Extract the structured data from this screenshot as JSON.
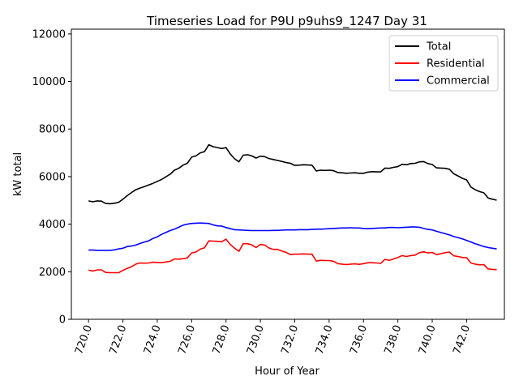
{
  "chart_data": {
    "type": "line",
    "title": "Timeseries Load for P9U p9uhs9_1247  Day 31",
    "xlabel": "Hour of Year",
    "ylabel": "kW total",
    "xlim": [
      719.0,
      744.2
    ],
    "ylim": [
      0,
      12200
    ],
    "xticks": [
      720,
      722,
      724,
      726,
      728,
      730,
      732,
      734,
      736,
      738,
      740,
      742
    ],
    "xtick_labels": [
      "720.0",
      "722.0",
      "724.0",
      "726.0",
      "728.0",
      "730.0",
      "732.0",
      "734.0",
      "736.0",
      "738.0",
      "740.0",
      "742.0"
    ],
    "yticks": [
      0,
      2000,
      4000,
      6000,
      8000,
      10000,
      12000
    ],
    "ytick_labels": [
      "0",
      "2000",
      "4000",
      "6000",
      "8000",
      "10000",
      "12000"
    ],
    "legend_position": "top-right",
    "x": [
      720.0,
      720.25,
      720.5,
      720.75,
      721.0,
      721.25,
      721.5,
      721.75,
      722.0,
      722.25,
      722.5,
      722.75,
      723.0,
      723.25,
      723.5,
      723.75,
      724.0,
      724.25,
      724.5,
      724.75,
      725.0,
      725.25,
      725.5,
      725.75,
      726.0,
      726.25,
      726.5,
      726.75,
      727.0,
      727.25,
      727.5,
      727.75,
      728.0,
      728.25,
      728.5,
      728.75,
      729.0,
      729.25,
      729.5,
      729.75,
      730.0,
      730.25,
      730.5,
      730.75,
      731.0,
      731.25,
      731.5,
      731.75,
      732.0,
      732.25,
      732.5,
      732.75,
      733.0,
      733.25,
      733.5,
      733.75,
      734.0,
      734.25,
      734.5,
      734.75,
      735.0,
      735.25,
      735.5,
      735.75,
      736.0,
      736.25,
      736.5,
      736.75,
      737.0,
      737.25,
      737.5,
      737.75,
      738.0,
      738.25,
      738.5,
      738.75,
      739.0,
      739.25,
      739.5,
      739.75,
      740.0,
      740.25,
      740.5,
      740.75,
      741.0,
      741.25,
      741.5,
      741.75,
      742.0,
      742.25,
      742.5,
      742.75,
      743.0,
      743.25,
      743.5,
      743.75
    ],
    "series": [
      {
        "name": "Total",
        "color": "#000000",
        "values": [
          4980,
          4940,
          4980,
          4970,
          4870,
          4860,
          4880,
          4920,
          5050,
          5200,
          5330,
          5450,
          5520,
          5580,
          5650,
          5720,
          5800,
          5880,
          5990,
          6100,
          6270,
          6350,
          6480,
          6560,
          6820,
          6870,
          7000,
          7050,
          7340,
          7260,
          7220,
          7180,
          7220,
          6950,
          6750,
          6620,
          6900,
          6920,
          6870,
          6780,
          6860,
          6840,
          6760,
          6720,
          6680,
          6640,
          6590,
          6560,
          6470,
          6480,
          6500,
          6490,
          6480,
          6240,
          6270,
          6260,
          6270,
          6250,
          6170,
          6160,
          6140,
          6150,
          6160,
          6140,
          6140,
          6190,
          6210,
          6200,
          6200,
          6360,
          6350,
          6390,
          6420,
          6520,
          6500,
          6550,
          6560,
          6620,
          6630,
          6550,
          6510,
          6370,
          6360,
          6350,
          6310,
          6120,
          6030,
          5930,
          5860,
          5560,
          5450,
          5370,
          5320,
          5100,
          5050,
          5010
        ]
      },
      {
        "name": "Residential",
        "color": "#ff0000",
        "values": [
          2070,
          2030,
          2080,
          2080,
          1970,
          1960,
          1960,
          1960,
          2060,
          2140,
          2210,
          2320,
          2370,
          2360,
          2370,
          2400,
          2390,
          2390,
          2410,
          2440,
          2540,
          2530,
          2550,
          2580,
          2790,
          2830,
          2950,
          3010,
          3300,
          3290,
          3280,
          3260,
          3370,
          3150,
          2990,
          2860,
          3180,
          3180,
          3130,
          3020,
          3150,
          3120,
          3000,
          2940,
          2940,
          2870,
          2810,
          2720,
          2740,
          2740,
          2750,
          2740,
          2740,
          2450,
          2480,
          2470,
          2470,
          2440,
          2340,
          2320,
          2300,
          2320,
          2330,
          2310,
          2340,
          2380,
          2380,
          2370,
          2350,
          2520,
          2480,
          2540,
          2600,
          2680,
          2640,
          2680,
          2700,
          2800,
          2840,
          2790,
          2810,
          2720,
          2760,
          2800,
          2830,
          2670,
          2640,
          2600,
          2590,
          2370,
          2320,
          2290,
          2300,
          2120,
          2100,
          2090
        ]
      },
      {
        "name": "Commercial",
        "color": "#0000ff",
        "values": [
          2910,
          2910,
          2900,
          2900,
          2900,
          2900,
          2920,
          2960,
          2990,
          3060,
          3080,
          3120,
          3190,
          3250,
          3300,
          3400,
          3470,
          3570,
          3650,
          3730,
          3790,
          3870,
          3960,
          4000,
          4030,
          4040,
          4050,
          4040,
          4030,
          3970,
          3930,
          3920,
          3860,
          3810,
          3770,
          3760,
          3750,
          3740,
          3730,
          3730,
          3730,
          3730,
          3730,
          3740,
          3740,
          3750,
          3760,
          3760,
          3760,
          3770,
          3770,
          3770,
          3780,
          3790,
          3790,
          3800,
          3810,
          3820,
          3830,
          3840,
          3840,
          3850,
          3840,
          3840,
          3820,
          3810,
          3820,
          3830,
          3840,
          3840,
          3860,
          3860,
          3850,
          3860,
          3870,
          3880,
          3880,
          3870,
          3820,
          3780,
          3760,
          3700,
          3650,
          3600,
          3550,
          3480,
          3440,
          3380,
          3320,
          3250,
          3180,
          3120,
          3060,
          3020,
          2990,
          2960
        ]
      }
    ]
  }
}
